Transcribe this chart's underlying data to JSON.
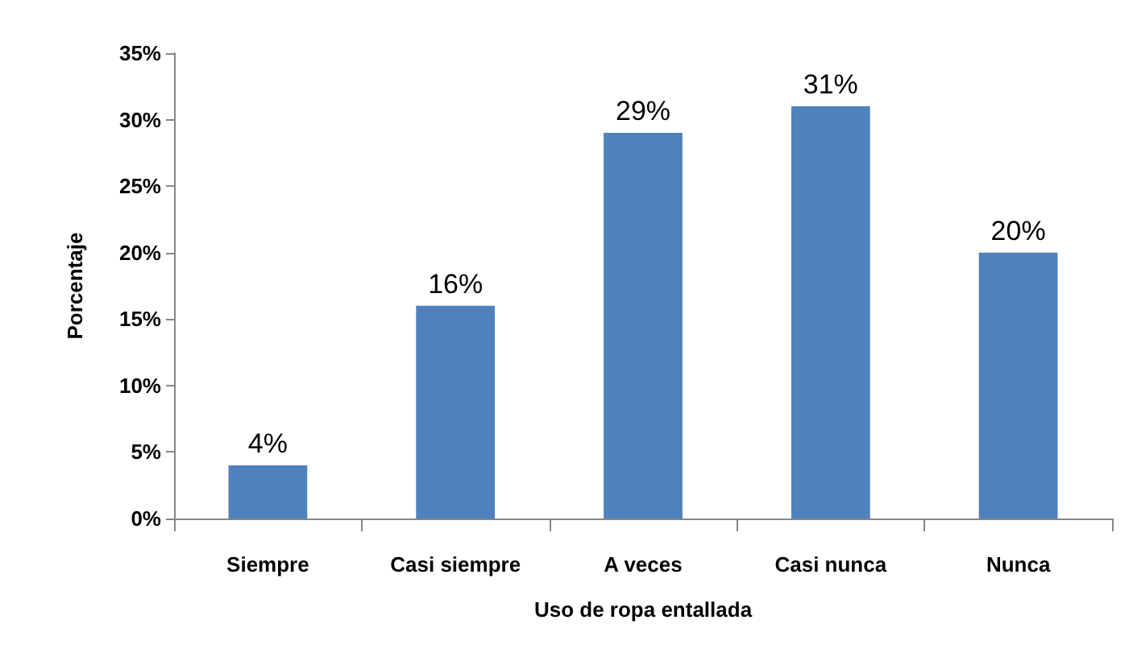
{
  "chart_data": {
    "type": "bar",
    "xlabel": "Uso de ropa entallada",
    "ylabel": "Porcentaje",
    "categories": [
      "Siempre",
      "Casi siempre",
      "A veces",
      "Casi nunca",
      "Nunca"
    ],
    "values": [
      4,
      16,
      29,
      31,
      20
    ],
    "value_labels": [
      "4%",
      "16%",
      "29%",
      "31%",
      "20%"
    ],
    "color": "#4f81bd",
    "ylim": [
      0,
      35
    ],
    "yticks": [
      {
        "value": 0,
        "label": "0%"
      },
      {
        "value": 5,
        "label": "5%"
      },
      {
        "value": 10,
        "label": "10%"
      },
      {
        "value": 15,
        "label": "15%"
      },
      {
        "value": 20,
        "label": "20%"
      },
      {
        "value": 25,
        "label": "25%"
      },
      {
        "value": 30,
        "label": "30%"
      },
      {
        "value": 35,
        "label": "35%"
      }
    ],
    "grid": false
  }
}
